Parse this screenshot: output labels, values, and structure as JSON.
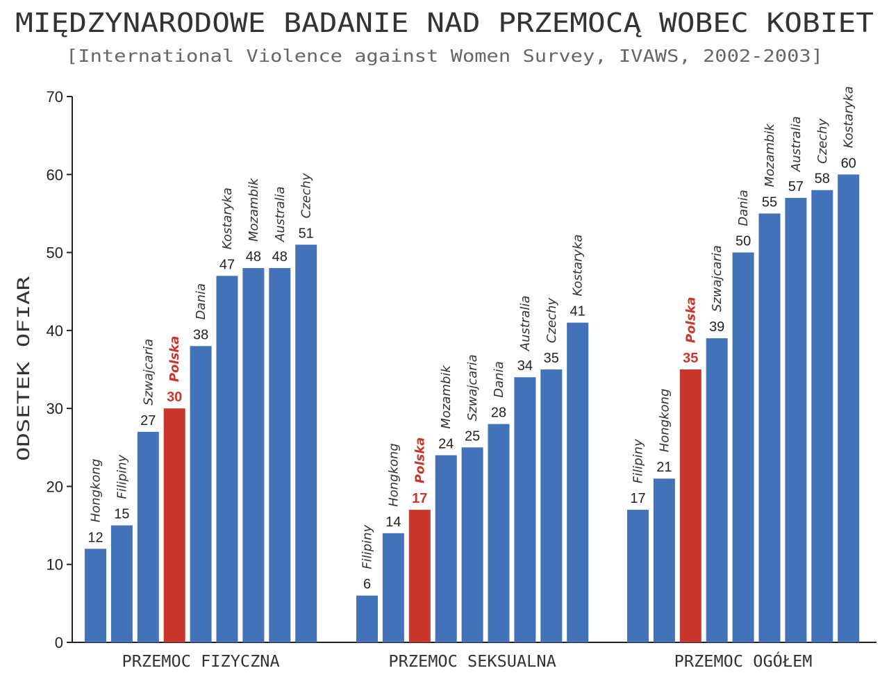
{
  "chart_data": {
    "type": "bar",
    "title": "MIĘDZYNARODOWE BADANIE NAD PRZEMOCĄ WOBEC KOBIET",
    "subtitle": "[International Violence against Women Survey, IVAWS, 2002-2003]",
    "ylabel": "ODSETEK OFIAR",
    "xlabel": "",
    "ylim": [
      0,
      70
    ],
    "yticks": [
      0,
      10,
      20,
      30,
      40,
      50,
      60,
      70
    ],
    "grid": false,
    "highlight": "Polska",
    "colors": {
      "bar": "#4472b8",
      "highlight": "#c9372c"
    },
    "groups": [
      {
        "label": "PRZEMOC FIZYCZNA",
        "categories": [
          "Hongkong",
          "Filipiny",
          "Szwajcaria",
          "Polska",
          "Dania",
          "Kostaryka",
          "Mozambik",
          "Australia",
          "Czechy"
        ],
        "values": [
          12,
          15,
          27,
          30,
          38,
          47,
          48,
          48,
          51
        ]
      },
      {
        "label": "PRZEMOC SEKSUALNA",
        "categories": [
          "Filipiny",
          "Hongkong",
          "Polska",
          "Mozambik",
          "Szwajcaria",
          "Dania",
          "Australia",
          "Czechy",
          "Kostaryka"
        ],
        "values": [
          6,
          14,
          17,
          24,
          25,
          28,
          34,
          35,
          41
        ]
      },
      {
        "label": "PRZEMOC OGÓŁEM",
        "categories": [
          "Filipiny",
          "Hongkong",
          "Polska",
          "Szwajcaria",
          "Dania",
          "Mozambik",
          "Australia",
          "Czechy",
          "Kostaryka"
        ],
        "values": [
          17,
          21,
          35,
          39,
          50,
          55,
          57,
          58,
          60
        ]
      }
    ]
  }
}
